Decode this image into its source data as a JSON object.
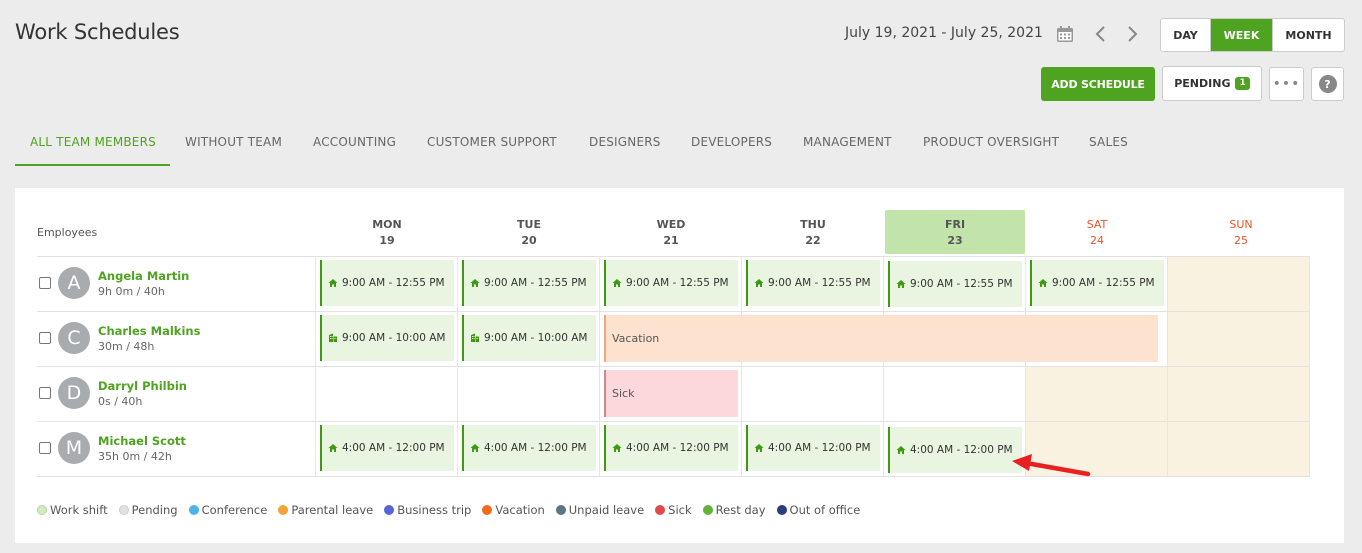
{
  "page": {
    "title": "Work Schedules"
  },
  "header": {
    "date_range": "July 19, 2021 - July 25, 2021",
    "views": [
      "DAY",
      "WEEK",
      "MONTH"
    ],
    "active_view": "WEEK",
    "add_schedule": "ADD SCHEDULE",
    "pending_label": "PENDING",
    "pending_count": "1",
    "more": "•••",
    "help": "?"
  },
  "tabs": [
    "ALL TEAM MEMBERS",
    "WITHOUT TEAM",
    "ACCOUNTING",
    "CUSTOMER SUPPORT",
    "DESIGNERS",
    "DEVELOPERS",
    "MANAGEMENT",
    "PRODUCT OVERSIGHT",
    "SALES"
  ],
  "active_tab": "ALL TEAM MEMBERS",
  "schedule": {
    "employees_header": "Employees",
    "days": [
      {
        "name": "MON",
        "date": "19"
      },
      {
        "name": "TUE",
        "date": "20"
      },
      {
        "name": "WED",
        "date": "21"
      },
      {
        "name": "THU",
        "date": "22"
      },
      {
        "name": "FRI",
        "date": "23"
      },
      {
        "name": "SAT",
        "date": "24"
      },
      {
        "name": "SUN",
        "date": "25"
      }
    ],
    "employees": [
      {
        "initial": "A",
        "name": "Angela Martin",
        "hours": "9h 0m / 40h"
      },
      {
        "initial": "C",
        "name": "Charles Malkins",
        "hours": "30m / 48h"
      },
      {
        "initial": "D",
        "name": "Darryl Philbin",
        "hours": "0s / 40h"
      },
      {
        "initial": "M",
        "name": "Michael Scott",
        "hours": "35h 0m / 42h"
      }
    ],
    "shifts": {
      "angela": [
        "9:00 AM - 12:55 PM",
        "9:00 AM - 12:55 PM",
        "9:00 AM - 12:55 PM",
        "9:00 AM - 12:55 PM",
        "9:00 AM - 12:55 PM",
        "9:00 AM - 12:55 PM"
      ],
      "charles": [
        "9:00 AM - 10:00 AM",
        "9:00 AM - 10:00 AM"
      ],
      "charles_vacation": "Vacation",
      "darryl_sick": "Sick",
      "michael": [
        "4:00 AM - 12:00 PM",
        "4:00 AM - 12:00 PM",
        "4:00 AM - 12:00 PM",
        "4:00 AM - 12:00 PM",
        "4:00 AM - 12:00 PM"
      ]
    }
  },
  "legend": [
    {
      "label": "Work shift",
      "color": "#d4ecc4"
    },
    {
      "label": "Pending",
      "color": "#e2e2e2"
    },
    {
      "label": "Conference",
      "color": "#4db3e8"
    },
    {
      "label": "Parental leave",
      "color": "#f0a53a"
    },
    {
      "label": "Business trip",
      "color": "#5a64d8"
    },
    {
      "label": "Vacation",
      "color": "#f26b1d"
    },
    {
      "label": "Unpaid leave",
      "color": "#5d7582"
    },
    {
      "label": "Sick",
      "color": "#e04b4b"
    },
    {
      "label": "Rest day",
      "color": "#62b33b"
    },
    {
      "label": "Out of office",
      "color": "#2d3e7c"
    }
  ],
  "colors": {
    "accent": "#4ea320",
    "weekend_text": "#e8532c"
  }
}
